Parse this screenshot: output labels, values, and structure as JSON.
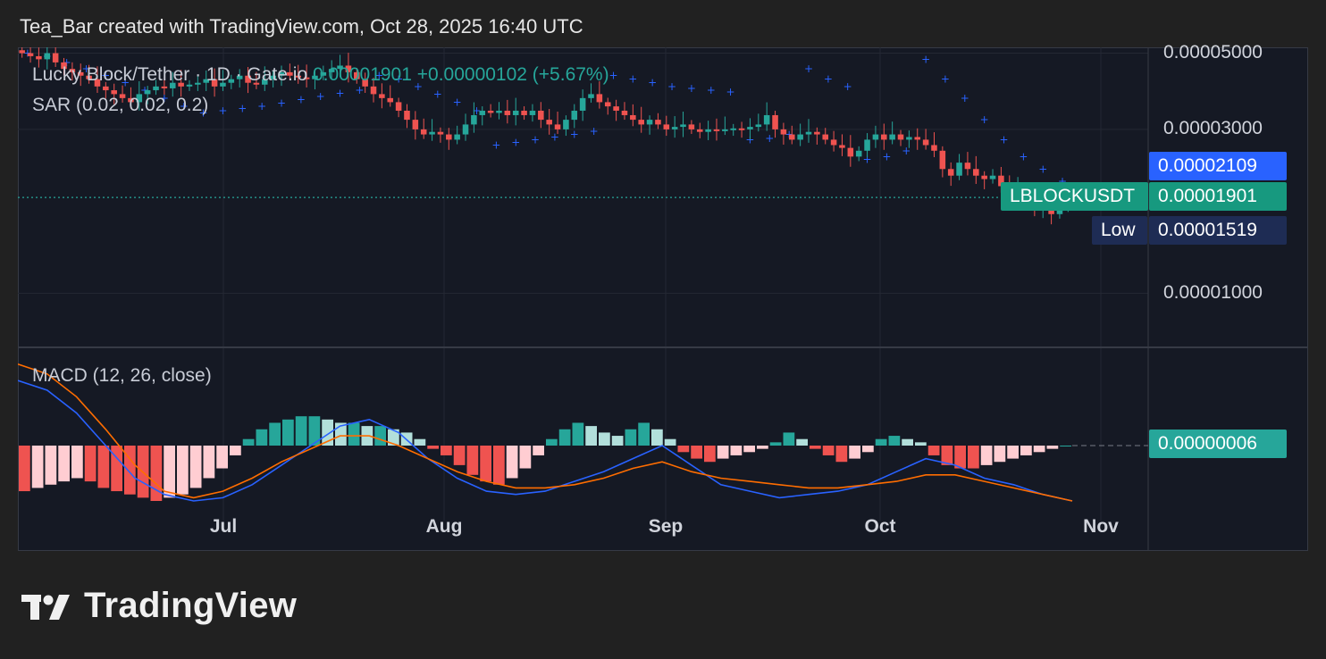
{
  "header": {
    "text": "Tea_Bar created with TradingView.com, Oct 28, 2025 16:40 UTC"
  },
  "legend": {
    "symbol": "Lucky Block/Tether · 1D · Gate.io",
    "price_change": "0.00001901 +0.00000102 (+5.67%)",
    "sar": "SAR (0.02, 0.02, 0.2)",
    "macd": "MACD (12, 26, close)"
  },
  "tags": {
    "sar_value": "0.00002109",
    "ticker": "LBLOCKUSDT",
    "last_price": "0.00001901",
    "low_label": "Low",
    "low_value": "0.00001519",
    "macd_value": "0.00000006"
  },
  "brand": {
    "name": "TradingView"
  },
  "colors": {
    "up": "#26a69a",
    "down": "#ef5350",
    "sar": "#2962ff",
    "macd_line": "#2962ff",
    "signal_line": "#ff6d00",
    "hist_up_strong": "#26a69a",
    "hist_up_weak": "#b2dfdb",
    "hist_down_strong": "#ef5350",
    "hist_down_weak": "#ffcdd2",
    "background": "#151924",
    "page": "#212121"
  },
  "chart_data": {
    "type": "candlestick",
    "title": "Lucky Block/Tether · 1D · Gate.io",
    "last_price": 1.901e-05,
    "price_axis": {
      "scale": "log",
      "ticks": [
        "0.00005000",
        "0.00003000",
        "0.00001000"
      ],
      "tick_values": [
        5e-05,
        3e-05,
        1e-05
      ],
      "range": [
        7e-06,
        5.2e-05
      ]
    },
    "time_axis": {
      "ticks": [
        "Jul",
        "Aug",
        "Sep",
        "Oct",
        "Nov"
      ],
      "range": [
        "2025-06-01",
        "2025-11-02"
      ]
    },
    "grid": true,
    "candles_close": [
      5e-05,
      4.9e-05,
      4.8e-05,
      5e-05,
      4.7e-05,
      4.5e-05,
      4.4e-05,
      4.3e-05,
      4.2e-05,
      4e-05,
      3.9e-05,
      3.8e-05,
      3.7e-05,
      3.6e-05,
      3.8e-05,
      3.9e-05,
      4e-05,
      3.95e-05,
      4.1e-05,
      4e-05,
      4.05e-05,
      4.1e-05,
      4.2e-05,
      4e-05,
      4.1e-05,
      4.2e-05,
      4.3e-05,
      4.1e-05,
      4.05e-05,
      4.2e-05,
      4.3e-05,
      4.4e-05,
      4.3e-05,
      4.25e-05,
      4.2e-05,
      4.3e-05,
      4.4e-05,
      4.5e-05,
      4.6e-05,
      4.4e-05,
      4.2e-05,
      4e-05,
      3.8e-05,
      3.7e-05,
      3.6e-05,
      3.4e-05,
      3.2e-05,
      3e-05,
      2.9e-05,
      2.95e-05,
      2.9e-05,
      2.8e-05,
      2.9e-05,
      3.1e-05,
      3.3e-05,
      3.4e-05,
      3.35e-05,
      3.4e-05,
      3.3e-05,
      3.4e-05,
      3.3e-05,
      3.4e-05,
      3.2e-05,
      3.1e-05,
      3e-05,
      3.2e-05,
      3.4e-05,
      3.7e-05,
      3.8e-05,
      3.6e-05,
      3.5e-05,
      3.4e-05,
      3.3e-05,
      3.2e-05,
      3.1e-05,
      3.2e-05,
      3.1e-05,
      3e-05,
      3.05e-05,
      3.1e-05,
      3e-05,
      2.95e-05,
      3e-05,
      2.98e-05,
      3e-05,
      3.02e-05,
      3e-05,
      3.05e-05,
      3.1e-05,
      3.3e-05,
      3e-05,
      2.9e-05,
      2.8e-05,
      2.9e-05,
      2.95e-05,
      2.9e-05,
      2.8e-05,
      2.7e-05,
      2.65e-05,
      2.5e-05,
      2.6e-05,
      2.8e-05,
      2.9e-05,
      2.8e-05,
      2.9e-05,
      2.8e-05,
      2.85e-05,
      2.8e-05,
      2.7e-05,
      2.6e-05,
      2.3e-05,
      2.2e-05,
      2.4e-05,
      2.3e-05,
      2.2e-05,
      2.15e-05,
      2.2e-05,
      2.05e-05,
      1.95e-05,
      2e-05,
      1.85e-05,
      1.75e-05,
      1.8e-05,
      1.7e-05,
      1.8e-05,
      1.9e-05
    ],
    "sar_values": [
      5e-05,
      4.9e-05,
      4.7e-05,
      4.5e-05,
      4.3e-05,
      4.1e-05,
      3.9e-05,
      3.7e-05,
      3.5e-05,
      3.35e-05,
      3.4e-05,
      3.45e-05,
      3.5e-05,
      3.58e-05,
      3.66e-05,
      3.74e-05,
      3.82e-05,
      3.9e-05,
      4.3e-05,
      4.2e-05,
      4e-05,
      3.8e-05,
      3.6e-05,
      3.4e-05,
      2.7e-05,
      2.75e-05,
      2.8e-05,
      2.85e-05,
      2.9e-05,
      2.96e-05,
      4.3e-05,
      4.2e-05,
      4.1e-05,
      4e-05,
      3.95e-05,
      3.9e-05,
      3.85e-05,
      2.8e-05,
      2.82e-05,
      2.9e-05,
      4.5e-05,
      4.2e-05,
      4e-05,
      2.45e-05,
      2.5e-05,
      2.6e-05,
      4.8e-05,
      4.2e-05,
      3.7e-05,
      3.2e-05,
      2.8e-05,
      2.5e-05,
      2.3e-05,
      2.12e-05
    ],
    "macd_histogram": [
      -1.4e-06,
      -1.3e-06,
      -1.2e-06,
      -1.1e-06,
      -1e-06,
      -1.1e-06,
      -1.3e-06,
      -1.4e-06,
      -1.5e-06,
      -1.6e-06,
      -1.7e-06,
      -1.6e-06,
      -1.5e-06,
      -1.3e-06,
      -1e-06,
      -7e-07,
      -3e-07,
      2e-07,
      5e-07,
      7e-07,
      8e-07,
      9e-07,
      9e-07,
      8e-07,
      7e-07,
      7e-07,
      6e-07,
      6e-07,
      5e-07,
      4e-07,
      2e-07,
      -1e-07,
      -3e-07,
      -6e-07,
      -9e-07,
      -1.1e-06,
      -1.2e-06,
      -1e-06,
      -7e-07,
      -3e-07,
      2e-07,
      5e-07,
      7e-07,
      6e-07,
      4e-07,
      3e-07,
      5e-07,
      7e-07,
      5e-07,
      2e-07,
      -2e-07,
      -4e-07,
      -5e-07,
      -4e-07,
      -3e-07,
      -2e-07,
      -1e-07,
      1e-07,
      4e-07,
      2e-07,
      -1e-07,
      -3e-07,
      -5e-07,
      -4e-07,
      -2e-07,
      2e-07,
      3e-07,
      2e-07,
      1e-07,
      -3e-07,
      -6e-07,
      -7e-07,
      -7e-07,
      -6e-07,
      -5e-07,
      -4e-07,
      -3e-07,
      -2e-07,
      -1e-07,
      0.0
    ],
    "macd_line": [
      2e-06,
      1.7e-06,
      1e-06,
      0.0,
      -1e-06,
      -1.5e-06,
      -1.8e-06,
      -1.6e-06,
      -1.2e-06,
      -6e-07,
      0.0,
      6e-07,
      8e-07,
      4e-07,
      -4e-07,
      -1e-06,
      -1.4e-06,
      -1.5e-06,
      -1.4e-06,
      -1.1e-06,
      -8e-07,
      -4e-07,
      0.0,
      -6e-07,
      -1.2e-06,
      -1.4e-06,
      -1.6e-06,
      -1.5e-06,
      -1.4e-06,
      -1.2e-06,
      -8e-07,
      -4e-07,
      -6e-07,
      -1e-06,
      -1.2e-06,
      -1.5e-06,
      -1.8e-06
    ],
    "signal_line": [
      2.5e-06,
      2.2e-06,
      1.5e-06,
      5e-07,
      -6e-07,
      -1.4e-06,
      -1.6e-06,
      -1.4e-06,
      -1e-06,
      -5e-07,
      -1e-07,
      3e-07,
      3e-07,
      0.0,
      -4e-07,
      -8e-07,
      -1.1e-06,
      -1.3e-06,
      -1.3e-06,
      -1.2e-06,
      -1e-06,
      -7e-07,
      -5e-07,
      -8e-07,
      -1e-06,
      -1.1e-06,
      -1.2e-06,
      -1.3e-06,
      -1.3e-06,
      -1.2e-06,
      -1.1e-06,
      -9e-07,
      -9e-07,
      -1.1e-06,
      -1.3e-06,
      -1.5e-06,
      -1.7e-06
    ],
    "macd_axis": {
      "zero_label": "0.00000006"
    }
  }
}
